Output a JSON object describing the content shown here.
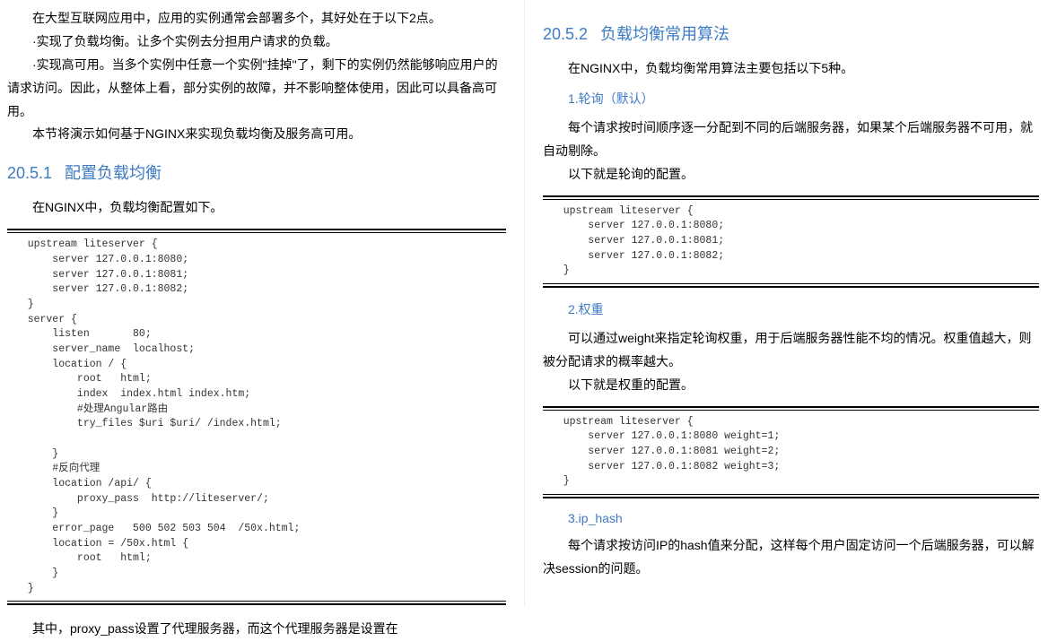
{
  "left": {
    "intro": "在大型互联网应用中，应用的实例通常会部署多个，其好处在于以下2点。",
    "bullet1": "·实现了负载均衡。让多个实例去分担用户请求的负载。",
    "bullet2": "·实现高可用。当多个实例中任意一个实例\"挂掉\"了，剩下的实例仍然能够响应用户的请求访问。因此，从整体上看，部分实例的故障，并不影响整体使用，因此可以具备高可用。",
    "after_bullets": "本节将演示如何基于NGINX来实现负载均衡及服务高可用。",
    "section_num": "20.5.1",
    "section_title": "配置负载均衡",
    "p1": "在NGINX中，负载均衡配置如下。",
    "code1": "   upstream liteserver {\n       server 127.0.0.1:8080;\n       server 127.0.0.1:8081;\n       server 127.0.0.1:8082;\n   }\n   server {\n       listen       80;\n       server_name  localhost;\n       location / {\n           root   html;\n           index  index.html index.htm;\n           #处理Angular路由\n           try_files $uri $uri/ /index.html;\n\n       }\n       #反向代理\n       location /api/ {\n           proxy_pass  http://liteserver/;\n       }\n       error_page   500 502 503 504  /50x.html;\n       location = /50x.html {\n           root   html;\n       }\n   }",
    "p2": "其中，proxy_pass设置了代理服务器，而这个代理服务器是设置在"
  },
  "right": {
    "section_num": "20.5.2",
    "section_title": "负载均衡常用算法",
    "p1": "在NGINX中，负载均衡常用算法主要包括以下5种。",
    "sub1": "1.轮询（默认）",
    "sub1_p1": "每个请求按时间顺序逐一分配到不同的后端服务器，如果某个后端服务器不可用，就自动剔除。",
    "sub1_p2": "以下就是轮询的配置。",
    "code1": "   upstream liteserver {\n       server 127.0.0.1:8080;\n       server 127.0.0.1:8081;\n       server 127.0.0.1:8082;\n   }",
    "sub2": "2.权重",
    "sub2_p1": "可以通过weight来指定轮询权重，用于后端服务器性能不均的情况。权重值越大，则被分配请求的概率越大。",
    "sub2_p2": "以下就是权重的配置。",
    "code2": "   upstream liteserver {\n       server 127.0.0.1:8080 weight=1;\n       server 127.0.0.1:8081 weight=2;\n       server 127.0.0.1:8082 weight=3;\n   }",
    "sub3": "3.ip_hash",
    "sub3_p1": "每个请求按访问IP的hash值来分配，这样每个用户固定访问一个后端服务器，可以解决session的问题。"
  }
}
